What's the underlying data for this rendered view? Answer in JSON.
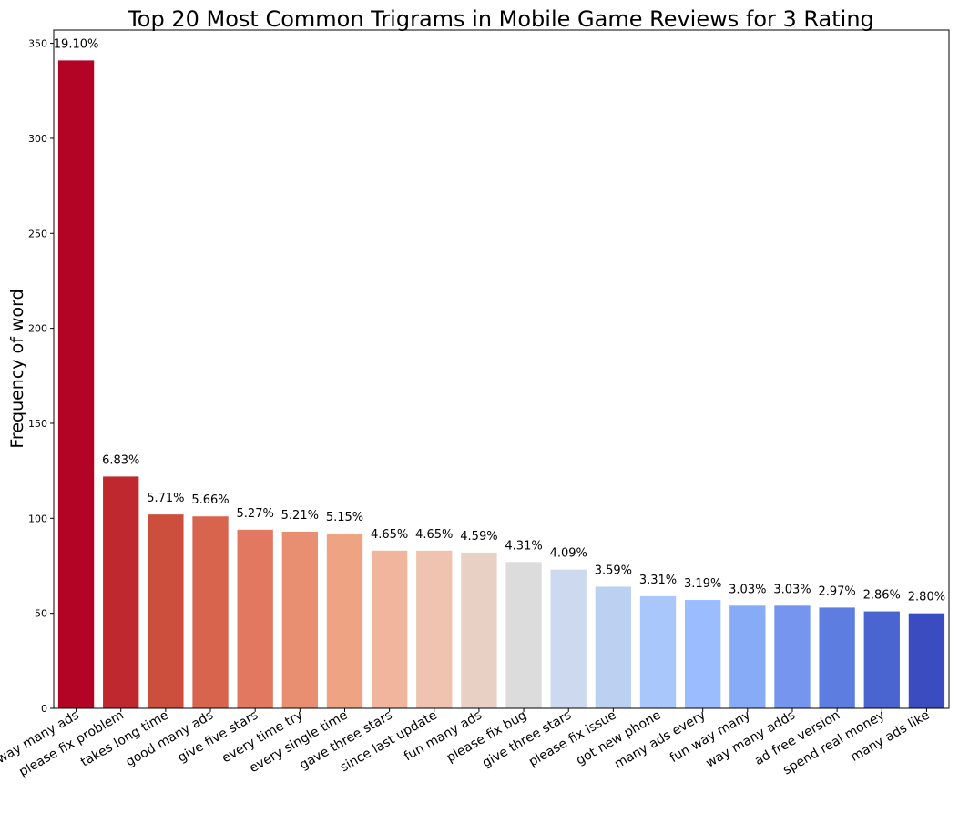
{
  "chart_data": {
    "type": "bar",
    "title": "Top 20 Most Common Trigrams in Mobile Game Reviews for 3 Rating",
    "xlabel": "",
    "ylabel": "Frequency of word",
    "ylim": [
      0,
      357
    ],
    "yticks": [
      0,
      50,
      100,
      150,
      200,
      250,
      300,
      350
    ],
    "grid": false,
    "categories": [
      "way many ads",
      "please fix problem",
      "takes long time",
      "good many ads",
      "give five stars",
      "every time try",
      "every single time",
      "gave three stars",
      "since last update",
      "fun many ads",
      "please fix bug",
      "give three stars",
      "please fix issue",
      "got new phone",
      "many ads every",
      "fun way many",
      "way many adds",
      "ad free version",
      "spend real money",
      "many ads like"
    ],
    "values": [
      341,
      122,
      102,
      101,
      94,
      93,
      92,
      83,
      83,
      82,
      77,
      73,
      64,
      59,
      57,
      54,
      54,
      53,
      51,
      50
    ],
    "data_labels": [
      "19.10%",
      "6.83%",
      "5.71%",
      "5.66%",
      "5.27%",
      "5.21%",
      "5.15%",
      "4.65%",
      "4.65%",
      "4.59%",
      "4.31%",
      "4.09%",
      "3.59%",
      "3.31%",
      "3.19%",
      "3.03%",
      "3.03%",
      "2.97%",
      "2.86%",
      "2.80%"
    ],
    "colors": [
      "#b40426",
      "#c0282f",
      "#cc4e3d",
      "#d8644e",
      "#e1785f",
      "#e88e71",
      "#eea383",
      "#f0b59c",
      "#efc3b0",
      "#e8d0c5",
      "#dddcdc",
      "#ccd9ee",
      "#bcd1f2",
      "#aac7fc",
      "#9bbcff",
      "#88abf7",
      "#7595ee",
      "#5d7ee0",
      "#4a65cf",
      "#3b4cc0"
    ]
  }
}
